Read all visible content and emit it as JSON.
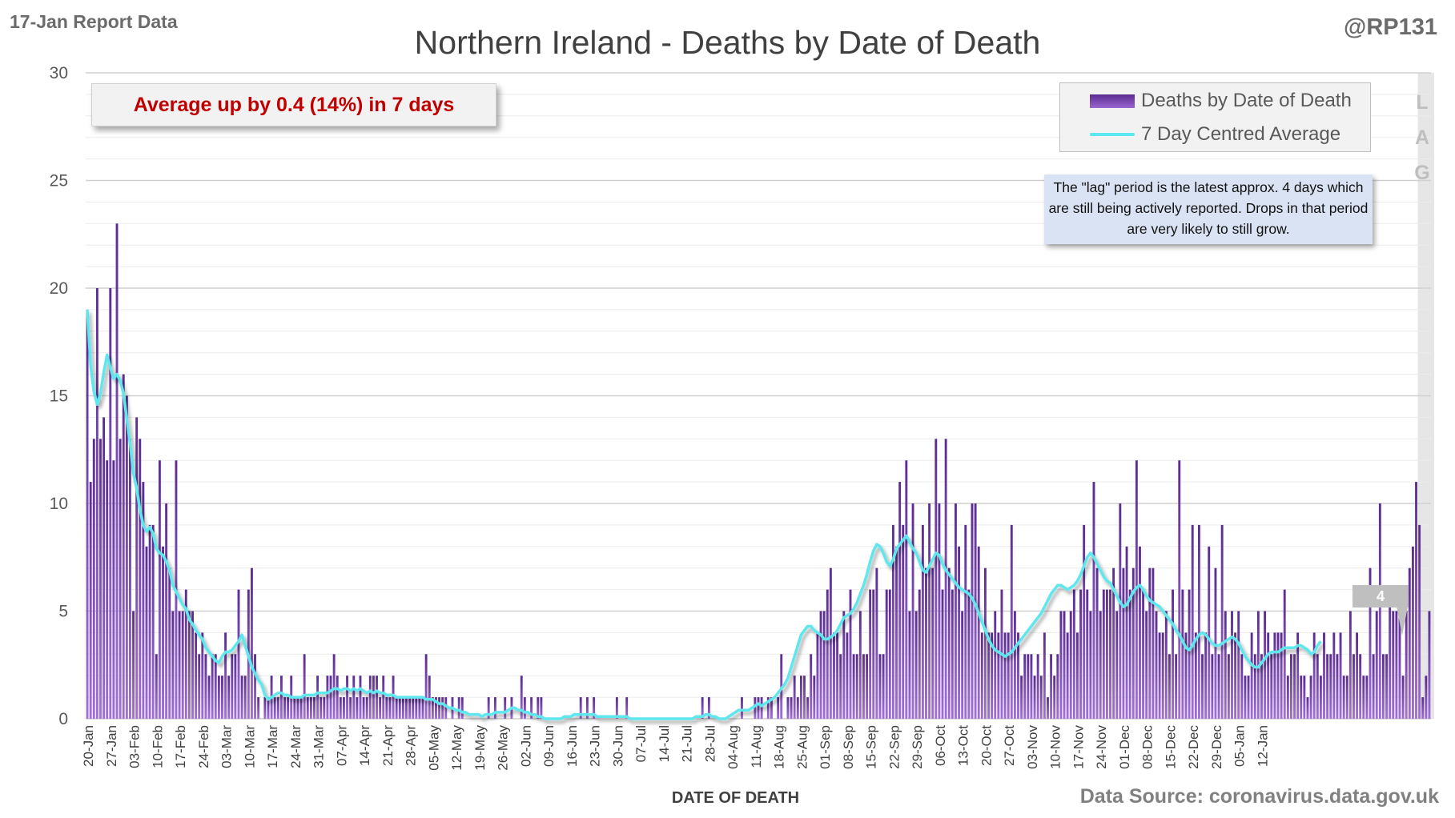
{
  "header": {
    "report_label": "17-Jan Report Data",
    "handle": "@RP131"
  },
  "colors": {
    "bar_top": "#5b2c8f",
    "bar_bottom": "#a070d6",
    "line": "#5ee7ee",
    "callout_text": "#c00000",
    "lag_band": "#e6e6e6"
  },
  "callout": {
    "text": "Average up by 0.4 (14%) in 7 days"
  },
  "note": {
    "text": "The \"lag\" period is the latest approx. 4 days which are still being actively reported. Drops in that period are very likely to still grow."
  },
  "lag": {
    "letters": [
      "L",
      "A",
      "G"
    ]
  },
  "annotation": {
    "value": "4"
  },
  "source": "Data Source: coronavirus.data.gov.uk",
  "chart_data": {
    "type": "bar",
    "title": "Northern Ireland - Deaths by Date of Death",
    "xlabel": "DATE OF DEATH",
    "ylabel": "",
    "ylim": [
      0,
      30
    ],
    "yticks": [
      0,
      5,
      10,
      15,
      20,
      25,
      30
    ],
    "x_tick_labels": [
      "20-Jan",
      "27-Jan",
      "03-Feb",
      "10-Feb",
      "17-Feb",
      "24-Feb",
      "03-Mar",
      "10-Mar",
      "17-Mar",
      "24-Mar",
      "31-Mar",
      "07-Apr",
      "14-Apr",
      "21-Apr",
      "28-Apr",
      "05-May",
      "12-May",
      "19-May",
      "26-May",
      "02-Jun",
      "09-Jun",
      "16-Jun",
      "23-Jun",
      "30-Jun",
      "07-Jul",
      "14-Jul",
      "21-Jul",
      "28-Jul",
      "04-Aug",
      "11-Aug",
      "18-Aug",
      "25-Aug",
      "01-Sep",
      "08-Sep",
      "15-Sep",
      "22-Sep",
      "29-Sep",
      "06-Oct",
      "13-Oct",
      "20-Oct",
      "27-Oct",
      "03-Nov",
      "10-Nov",
      "17-Nov",
      "24-Nov",
      "01-Dec",
      "08-Dec",
      "15-Dec",
      "22-Dec",
      "29-Dec",
      "05-Jan",
      "12-Jan"
    ],
    "legend": {
      "position": "top-right",
      "entries": [
        "Deaths by Date of Death",
        "7 Day Centred Average"
      ]
    },
    "grid": true,
    "lag_days": 4,
    "series": [
      {
        "name": "Deaths by Date of Death",
        "type": "bar",
        "values": [
          19,
          11,
          13,
          20,
          13,
          14,
          12,
          20,
          12,
          23,
          13,
          16,
          15,
          13,
          5,
          14,
          13,
          11,
          8,
          9,
          9,
          3,
          12,
          8,
          10,
          7,
          5,
          12,
          5,
          5,
          6,
          5,
          5,
          4,
          3,
          4,
          3,
          2,
          3,
          3,
          2,
          2,
          4,
          2,
          3,
          3,
          6,
          2,
          2,
          6,
          7,
          3,
          1,
          0,
          1,
          1,
          2,
          1,
          1,
          2,
          1,
          1,
          2,
          1,
          1,
          1,
          3,
          1,
          1,
          1,
          2,
          1,
          1,
          2,
          2,
          3,
          2,
          1,
          1,
          2,
          1,
          2,
          1,
          2,
          1,
          1,
          2,
          2,
          2,
          1,
          2,
          1,
          1,
          2,
          1,
          1,
          1,
          1,
          1,
          1,
          1,
          1,
          1,
          3,
          2,
          1,
          1,
          1,
          1,
          1,
          0,
          1,
          0,
          1,
          1,
          0,
          0,
          0,
          0,
          0,
          0,
          0,
          1,
          0,
          1,
          0,
          0,
          1,
          0,
          1,
          0,
          0,
          2,
          1,
          0,
          1,
          0,
          1,
          1,
          0,
          0,
          0,
          0,
          0,
          0,
          0,
          0,
          0,
          0,
          0,
          1,
          0,
          1,
          0,
          1,
          0,
          0,
          0,
          0,
          0,
          0,
          1,
          0,
          0,
          1,
          0,
          0,
          0,
          0,
          0,
          0,
          0,
          0,
          0,
          0,
          0,
          0,
          0,
          0,
          0,
          0,
          0,
          0,
          0,
          0,
          0,
          0,
          1,
          0,
          1,
          0,
          0,
          0,
          0,
          0,
          0,
          0,
          0,
          0,
          1,
          0,
          0,
          0,
          1,
          1,
          1,
          0,
          1,
          1,
          0,
          1,
          3,
          0,
          1,
          1,
          2,
          1,
          2,
          2,
          1,
          3,
          2,
          4,
          5,
          5,
          6,
          7,
          4,
          4,
          3,
          5,
          4,
          6,
          3,
          3,
          5,
          3,
          3,
          6,
          6,
          7,
          3,
          3,
          6,
          6,
          9,
          8,
          11,
          9,
          12,
          5,
          10,
          5,
          6,
          9,
          7,
          10,
          7,
          13,
          10,
          6,
          13,
          7,
          6,
          10,
          8,
          5,
          9,
          6,
          10,
          10,
          8,
          4,
          7,
          4,
          4,
          5,
          4,
          6,
          4,
          4,
          9,
          5,
          4,
          2,
          3,
          3,
          3,
          2,
          3,
          2,
          4,
          1,
          3,
          2,
          3,
          5,
          5,
          4,
          5,
          6,
          4,
          6,
          9,
          6,
          5,
          11,
          7,
          5,
          6,
          6,
          6,
          7,
          5,
          10,
          7,
          8,
          6,
          7,
          12,
          8,
          6,
          5,
          7,
          7,
          5,
          4,
          4,
          5,
          3,
          6,
          3,
          12,
          6,
          4,
          6,
          9,
          4,
          9,
          3,
          4,
          8,
          3,
          7,
          3,
          9,
          5,
          3,
          5,
          4,
          5,
          3,
          2,
          2,
          4,
          3,
          5,
          3,
          5,
          4,
          3,
          4,
          4,
          4,
          6,
          2,
          3,
          3,
          4,
          2,
          2,
          1,
          2,
          4,
          3,
          2,
          4,
          3,
          3,
          4,
          3,
          4,
          2,
          2,
          5,
          3,
          4,
          3,
          2,
          2,
          7,
          3,
          5,
          10,
          3,
          3,
          6,
          5,
          5,
          5,
          2,
          5,
          7,
          8,
          11,
          9,
          1,
          2,
          5
        ]
      },
      {
        "name": "7 Day Centred Average",
        "type": "line",
        "values": [
          19,
          16.4,
          15.2,
          14.6,
          15.1,
          16.1,
          16.9,
          16.3,
          15.8,
          16,
          15.7,
          15.1,
          13.9,
          12.8,
          11.4,
          10.7,
          9.7,
          9,
          8.7,
          8.9,
          8.6,
          7.9,
          7.7,
          7.6,
          7.3,
          6.9,
          6.2,
          5.9,
          5.6,
          5.3,
          5.1,
          4.6,
          4.4,
          4.1,
          3.9,
          3.7,
          3.3,
          3.1,
          2.9,
          2.7,
          2.6,
          2.9,
          3.1,
          3.1,
          3.2,
          3.4,
          3.6,
          3.9,
          3.4,
          2.9,
          2.4,
          2.1,
          1.8,
          1.6,
          1.1,
          0.9,
          1,
          1.1,
          1.2,
          1.2,
          1.1,
          1.1,
          1,
          1,
          1,
          1,
          1.1,
          1.1,
          1.1,
          1.1,
          1.2,
          1.2,
          1.2,
          1.2,
          1.3,
          1.4,
          1.4,
          1.3,
          1.4,
          1.4,
          1.3,
          1.4,
          1.3,
          1.4,
          1.3,
          1.2,
          1.3,
          1.2,
          1.3,
          1.2,
          1.2,
          1.1,
          1.1,
          1.1,
          1,
          1,
          1,
          1,
          1,
          1,
          1,
          1,
          1,
          0.9,
          0.9,
          0.9,
          0.8,
          0.7,
          0.7,
          0.6,
          0.5,
          0.5,
          0.4,
          0.4,
          0.3,
          0.3,
          0.2,
          0.2,
          0.2,
          0.2,
          0.1,
          0.2,
          0.2,
          0.2,
          0.3,
          0.3,
          0.3,
          0.3,
          0.4,
          0.5,
          0.5,
          0.4,
          0.4,
          0.3,
          0.3,
          0.2,
          0.2,
          0.1,
          0.1,
          0,
          0,
          0,
          0,
          0,
          0,
          0.1,
          0.1,
          0.1,
          0.2,
          0.2,
          0.2,
          0.2,
          0.2,
          0.2,
          0.2,
          0.1,
          0.1,
          0.1,
          0.1,
          0.1,
          0.1,
          0.1,
          0.1,
          0.1,
          0.1,
          0,
          0,
          0,
          0,
          0,
          0,
          0,
          0,
          0,
          0,
          0,
          0,
          0,
          0,
          0,
          0,
          0,
          0,
          0,
          0,
          0.1,
          0.1,
          0.1,
          0.2,
          0.2,
          0.1,
          0.1,
          0,
          0,
          0,
          0.1,
          0.2,
          0.3,
          0.4,
          0.4,
          0.4,
          0.4,
          0.5,
          0.6,
          0.7,
          0.6,
          0.7,
          0.8,
          0.9,
          1,
          1.2,
          1.4,
          1.6,
          1.9,
          2.4,
          2.9,
          3.4,
          3.9,
          4.1,
          4.3,
          4.3,
          4.1,
          4,
          3.9,
          3.7,
          3.7,
          3.8,
          3.9,
          4.1,
          4.4,
          4.7,
          4.8,
          4.9,
          5.1,
          5.4,
          5.8,
          6.2,
          6.7,
          7.3,
          7.8,
          8.1,
          8,
          7.7,
          7.3,
          7.1,
          7.4,
          7.9,
          8.1,
          8.3,
          8.5,
          8.2,
          7.9,
          7.7,
          7.3,
          6.9,
          6.8,
          7.1,
          7.4,
          7.7,
          7.6,
          7.2,
          6.9,
          6.7,
          6.5,
          6.3,
          6.1,
          6,
          5.9,
          5.8,
          5.6,
          5.3,
          4.9,
          4.5,
          4.1,
          3.7,
          3.4,
          3.2,
          3.1,
          3,
          2.9,
          3,
          3.1,
          3.3,
          3.5,
          3.7,
          3.9,
          4.1,
          4.3,
          4.5,
          4.7,
          4.9,
          5.2,
          5.5,
          5.8,
          6,
          6.2,
          6.2,
          6.1,
          6,
          6.1,
          6.2,
          6.4,
          6.7,
          7.1,
          7.5,
          7.7,
          7.5,
          7.2,
          6.9,
          6.6,
          6.4,
          6.3,
          6,
          5.7,
          5.4,
          5.2,
          5.3,
          5.6,
          5.9,
          6.1,
          6.2,
          6,
          5.7,
          5.5,
          5.4,
          5.3,
          5.2,
          5,
          4.8,
          4.6,
          4.4,
          4.1,
          3.9,
          3.6,
          3.3,
          3.2,
          3.4,
          3.7,
          3.9,
          4,
          3.9,
          3.7,
          3.5,
          3.4,
          3.4,
          3.5,
          3.6,
          3.7,
          3.8,
          3.7,
          3.5,
          3.2,
          2.9,
          2.7,
          2.5,
          2.4,
          2.4,
          2.6,
          2.8,
          3,
          3.1,
          3.1,
          3.1,
          3.2,
          3.3,
          3.3,
          3.3,
          3.3,
          3.4,
          3.4,
          3.3,
          3.2,
          3,
          3.1,
          3.4,
          3.6
        ]
      }
    ]
  }
}
